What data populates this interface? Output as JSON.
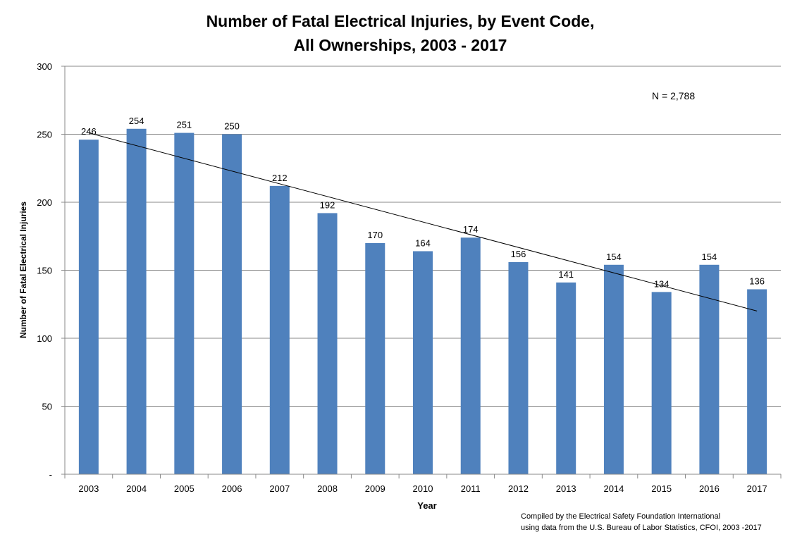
{
  "chart_data": {
    "type": "bar",
    "title_lines": [
      "Number of Fatal Electrical Injuries, by Event Code,",
      "All Ownerships, 2003 - 2017"
    ],
    "xlabel": "Year",
    "ylabel": "Number of Fatal Electrical Injuries",
    "ylim": [
      0,
      300
    ],
    "yticks": [
      "-",
      "50",
      "100",
      "150",
      "200",
      "250",
      "300"
    ],
    "ytick_values": [
      0,
      50,
      100,
      150,
      200,
      250,
      300
    ],
    "grid": true,
    "categories": [
      "2003",
      "2004",
      "2005",
      "2006",
      "2007",
      "2008",
      "2009",
      "2010",
      "2011",
      "2012",
      "2013",
      "2014",
      "2015",
      "2016",
      "2017"
    ],
    "values": [
      246,
      254,
      251,
      250,
      212,
      192,
      170,
      164,
      174,
      156,
      141,
      154,
      134,
      154,
      136
    ],
    "bar_color": "#4F81BD",
    "trendline": {
      "type": "linear",
      "start": 251,
      "end": 120
    },
    "annotation": "N = 2,788",
    "footnote_lines": [
      "Compiled by the Electrical Safety Foundation International",
      "using data from the U.S. Bureau of Labor Statistics, CFOI, 2003 -2017"
    ]
  }
}
